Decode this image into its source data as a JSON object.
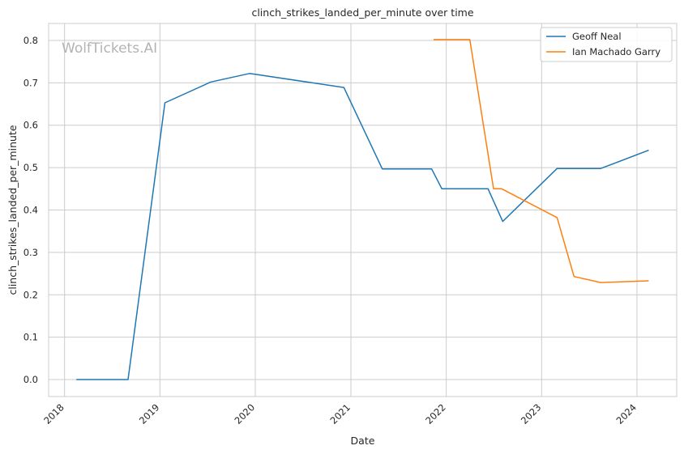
{
  "chart_data": {
    "type": "line",
    "title": "clinch_strikes_landed_per_minute over time",
    "xlabel": "Date",
    "ylabel": "clinch_strikes_landed_per_minute",
    "watermark": "WolfTickets.AI",
    "x_ticks": [
      "2018",
      "2019",
      "2020",
      "2021",
      "2022",
      "2023",
      "2024"
    ],
    "y_ticks": [
      "0.0",
      "0.1",
      "0.2",
      "0.3",
      "0.4",
      "0.5",
      "0.6",
      "0.7",
      "0.8"
    ],
    "xlim": [
      "2017-11-01",
      "2024-06-01"
    ],
    "ylim": [
      -0.04,
      0.84
    ],
    "grid": true,
    "legend_position": "top-right",
    "series": [
      {
        "name": "Geoff Neal",
        "color": "#1f77b4",
        "points": [
          [
            "2018-02-15",
            0.0
          ],
          [
            "2018-09-01",
            0.0
          ],
          [
            "2019-01-20",
            0.653
          ],
          [
            "2019-07-15",
            0.702
          ],
          [
            "2019-12-10",
            0.722
          ],
          [
            "2020-12-05",
            0.689
          ],
          [
            "2021-05-01",
            0.497
          ],
          [
            "2021-11-06",
            0.497
          ],
          [
            "2021-12-15",
            0.45
          ],
          [
            "2022-06-10",
            0.45
          ],
          [
            "2022-08-05",
            0.373
          ],
          [
            "2023-03-01",
            0.498
          ],
          [
            "2023-08-15",
            0.498
          ],
          [
            "2024-02-15",
            0.541
          ]
        ]
      },
      {
        "name": "Ian Machado Garry",
        "color": "#ff7f0e",
        "points": [
          [
            "2021-11-13",
            0.802
          ],
          [
            "2022-04-01",
            0.802
          ],
          [
            "2022-07-01",
            0.45
          ],
          [
            "2022-08-01",
            0.45
          ],
          [
            "2023-03-01",
            0.382
          ],
          [
            "2023-05-05",
            0.243
          ],
          [
            "2023-08-15",
            0.229
          ],
          [
            "2024-02-15",
            0.233
          ]
        ]
      }
    ]
  }
}
